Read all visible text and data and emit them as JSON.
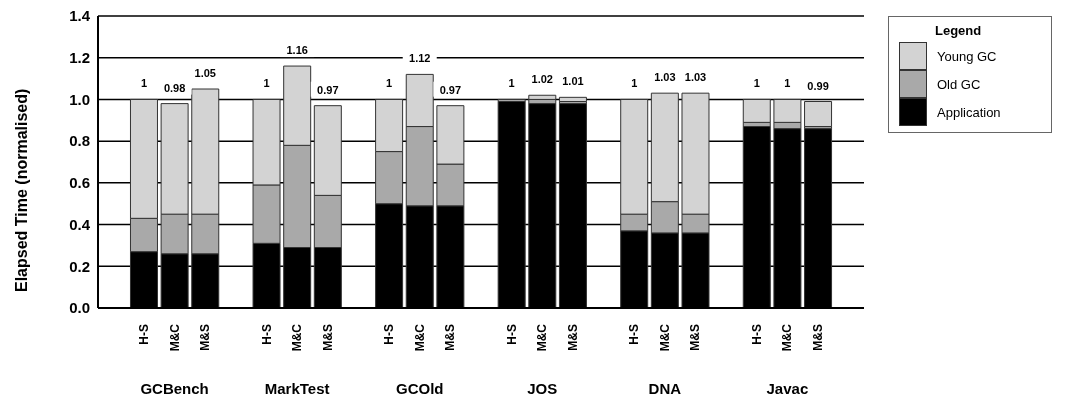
{
  "chart_data": {
    "type": "bar",
    "stacked": true,
    "ylabel": "Elapsed Time (normalised)",
    "legend_title": "Legend",
    "legend": "top right",
    "grid": "y",
    "categories": [
      "H-S",
      "M&C",
      "M&S",
      "H-S",
      "M&C",
      "M&S",
      "H-S",
      "M&C",
      "M&S",
      "H-S",
      "M&C",
      "M&S",
      "H-S",
      "M&C",
      "M&S",
      "H-S",
      "M&C",
      "M&S"
    ],
    "annotations": [
      "GCBench",
      "MarkTest",
      "GCOld",
      "JOS",
      "DNA",
      "Javac"
    ],
    "series": [
      {
        "name": "Application",
        "color": "#000000",
        "values": [
          0.27,
          0.26,
          0.26,
          0.31,
          0.29,
          0.29,
          0.5,
          0.49,
          0.49,
          0.99,
          0.98,
          0.98,
          0.37,
          0.36,
          0.36,
          0.87,
          0.86,
          0.86
        ]
      },
      {
        "name": "Old GC",
        "color": "#a9a9a9",
        "values": [
          0.16,
          0.19,
          0.19,
          0.28,
          0.49,
          0.25,
          0.25,
          0.38,
          0.2,
          0.01,
          0.02,
          0.01,
          0.08,
          0.15,
          0.09,
          0.02,
          0.03,
          0.01
        ]
      },
      {
        "name": "Young GC",
        "color": "#d3d3d3",
        "values": [
          0.57,
          0.53,
          0.6,
          0.41,
          0.38,
          0.43,
          0.25,
          0.25,
          0.28,
          0,
          0.02,
          0.02,
          0.55,
          0.52,
          0.58,
          0.11,
          0.11,
          0.12
        ]
      }
    ],
    "totals": [
      "1",
      "0.98",
      "1.05",
      "1",
      "1.16",
      "0.97",
      "1",
      "1.12",
      "0.97",
      "1",
      "1.02",
      "1.01",
      "1",
      "1.03",
      "1.03",
      "1",
      "1",
      "0.99"
    ],
    "ylim": [
      0,
      1.4
    ],
    "yticks": [
      {
        "value": 0,
        "label": "0.0"
      },
      {
        "value": 0.2,
        "label": "0.2"
      },
      {
        "value": 0.4,
        "label": "0.4"
      },
      {
        "value": 0.6,
        "label": "0.6"
      },
      {
        "value": 0.8,
        "label": "0.8"
      },
      {
        "value": 1,
        "label": "1.0"
      },
      {
        "value": 1.2,
        "label": "1.2"
      },
      {
        "value": 1.4,
        "label": "1.4"
      }
    ]
  }
}
